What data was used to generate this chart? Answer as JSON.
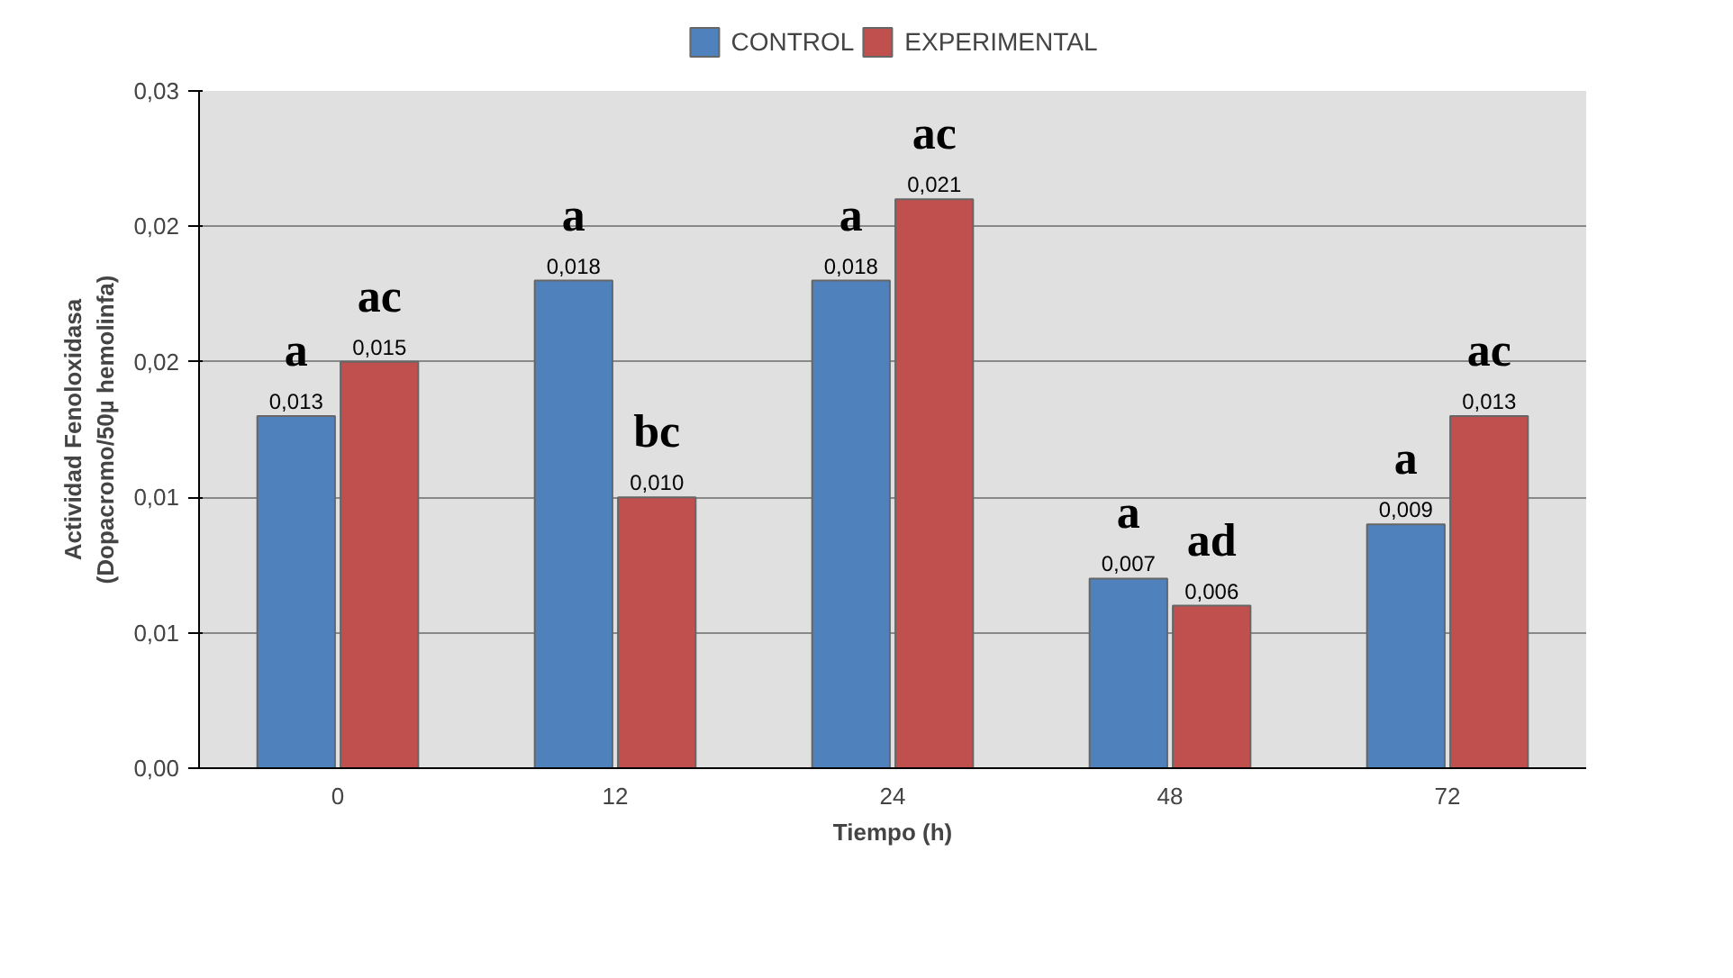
{
  "chart_data": {
    "type": "bar",
    "xlabel": "Tiempo (h)",
    "ylabel": "Actividad Fenoloxidasa\n(Dopacromo/50µ hemolinfa)",
    "categories": [
      "0",
      "12",
      "24",
      "48",
      "72"
    ],
    "series": [
      {
        "name": "CONTROL",
        "color": "#4f81bd",
        "values": [
          0.013,
          0.018,
          0.018,
          0.007,
          0.009
        ],
        "value_labels": [
          "0,013",
          "0,018",
          "0,018",
          "0,007",
          "0,009"
        ]
      },
      {
        "name": "EXPERIMENTAL",
        "color": "#c0504d",
        "values": [
          0.015,
          0.01,
          0.021,
          0.006,
          0.013
        ],
        "value_labels": [
          "0,015",
          "0,010",
          "0,021",
          "0,006",
          "0,013"
        ]
      }
    ],
    "ylim": [
      0,
      0.025
    ],
    "yticks": [
      {
        "value": 0,
        "label": "0,00"
      },
      {
        "value": 0.005,
        "label": "0,01"
      },
      {
        "value": 0.01,
        "label": "0,01"
      },
      {
        "value": 0.015,
        "label": "0,02"
      },
      {
        "value": 0.02,
        "label": "0,02"
      },
      {
        "value": 0.025,
        "label": "0,03"
      }
    ],
    "grid": "y",
    "legend": "top",
    "annotations": [
      {
        "text": "a",
        "x": "0",
        "y": 0.013
      },
      {
        "text": "ac",
        "x": "0",
        "y": 0.015
      },
      {
        "text": "a",
        "x": "12",
        "y": 0.018
      },
      {
        "text": "bc",
        "x": "12",
        "y": 0.01
      },
      {
        "text": "a",
        "x": "24",
        "y": 0.018
      },
      {
        "text": "ac",
        "x": "24",
        "y": 0.021
      },
      {
        "text": "a",
        "x": "48",
        "y": 0.007
      },
      {
        "text": "ad",
        "x": "48",
        "y": 0.006
      },
      {
        "text": "a",
        "x": "72",
        "y": 0.009
      },
      {
        "text": "ac",
        "x": "72",
        "y": 0.013
      }
    ]
  }
}
